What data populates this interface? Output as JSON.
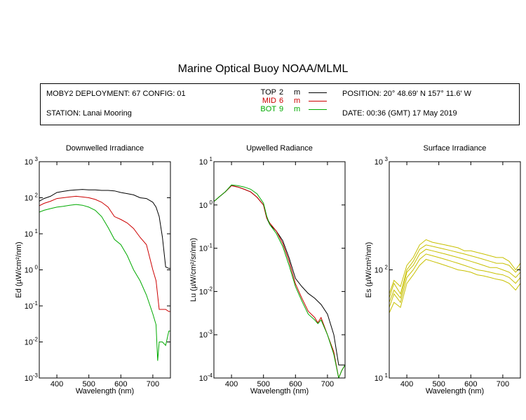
{
  "title": "Marine Optical Buoy NOAA/MLML",
  "info": {
    "deployment": "MOBY2 DEPLOYMENT: 67 CONFIG: 01",
    "station": "STATION: Lanai Mooring",
    "position": "POSITION: 20° 48.69' N   157° 11.6' W",
    "date": "DATE: 00:36 (GMT) 17 May 2019",
    "legend": [
      {
        "name": "TOP",
        "depth": "2",
        "unit": "m",
        "color": "#000000"
      },
      {
        "name": "MID",
        "depth": "6",
        "unit": "m",
        "color": "#cc0000"
      },
      {
        "name": "BOT",
        "depth": "9",
        "unit": "m",
        "color": "#00aa00"
      }
    ]
  },
  "chart_data": [
    {
      "type": "line",
      "title": "Downwelled Irradiance",
      "xlabel": "Wavelength (nm)",
      "ylabel": "Ed  (µW/cm²/nm)",
      "xlim": [
        345,
        755
      ],
      "ylim": [
        0.001,
        1000
      ],
      "yscale": "log",
      "xticks": [
        400,
        500,
        600,
        700
      ],
      "yticks": [
        0.001,
        0.01,
        0.1,
        1,
        10,
        100,
        1000
      ],
      "ytick_labels": [
        [
          "10",
          "-3"
        ],
        [
          "10",
          "-2"
        ],
        [
          "10",
          "-1"
        ],
        [
          "10",
          "0"
        ],
        [
          "10",
          "1"
        ],
        [
          "10",
          "2"
        ],
        [
          "10",
          "3"
        ]
      ],
      "series": [
        {
          "name": "TOP",
          "color": "#000000",
          "x": [
            345,
            360,
            380,
            400,
            420,
            440,
            460,
            480,
            500,
            520,
            540,
            560,
            580,
            600,
            620,
            640,
            660,
            680,
            700,
            710,
            720,
            730,
            740,
            750,
            755
          ],
          "y": [
            80,
            95,
            110,
            140,
            150,
            160,
            165,
            170,
            165,
            165,
            160,
            160,
            155,
            140,
            130,
            120,
            100,
            95,
            75,
            55,
            30,
            8,
            1.2,
            1.1,
            1.1
          ]
        },
        {
          "name": "MID",
          "color": "#cc0000",
          "x": [
            345,
            360,
            380,
            400,
            420,
            440,
            460,
            480,
            500,
            520,
            540,
            560,
            580,
            600,
            620,
            640,
            660,
            680,
            700,
            710,
            720,
            730,
            740,
            750,
            755
          ],
          "y": [
            60,
            70,
            80,
            95,
            100,
            105,
            110,
            105,
            100,
            90,
            75,
            55,
            30,
            25,
            20,
            14,
            8,
            5,
            1,
            0.5,
            0.08,
            0.08,
            0.08,
            0.07,
            0.07
          ]
        },
        {
          "name": "BOT",
          "color": "#00aa00",
          "x": [
            345,
            360,
            380,
            400,
            420,
            440,
            460,
            480,
            500,
            520,
            540,
            560,
            580,
            600,
            620,
            640,
            660,
            680,
            700,
            710,
            715,
            720,
            730,
            740,
            750,
            755
          ],
          "y": [
            40,
            45,
            50,
            55,
            58,
            62,
            65,
            62,
            55,
            45,
            30,
            15,
            7,
            5,
            2.5,
            1,
            0.5,
            0.2,
            0.06,
            0.03,
            0.003,
            0.01,
            0.01,
            0.008,
            0.02,
            0.02
          ]
        }
      ]
    },
    {
      "type": "line",
      "title": "Upwelled Radiance",
      "xlabel": "Wavelength (nm)",
      "ylabel": "Lu  (µW/cm²/sr/nm)",
      "xlim": [
        345,
        755
      ],
      "ylim": [
        0.0001,
        10
      ],
      "yscale": "log",
      "xticks": [
        400,
        500,
        600,
        700
      ],
      "yticks": [
        0.0001,
        0.001,
        0.01,
        0.1,
        1,
        10
      ],
      "ytick_labels": [
        [
          "10",
          "-4"
        ],
        [
          "10",
          "-3"
        ],
        [
          "10",
          "-2"
        ],
        [
          "10",
          "-1"
        ],
        [
          "10",
          "0"
        ],
        [
          "10",
          "1"
        ]
      ],
      "series": [
        {
          "name": "TOP",
          "color": "#000000",
          "x": [
            345,
            360,
            380,
            400,
            420,
            440,
            460,
            480,
            500,
            510,
            520,
            540,
            560,
            580,
            600,
            620,
            640,
            660,
            680,
            700,
            720,
            735,
            745,
            755
          ],
          "y": [
            1.2,
            1.5,
            2.0,
            2.8,
            2.6,
            2.3,
            2.0,
            1.5,
            1.0,
            0.5,
            0.35,
            0.25,
            0.15,
            0.06,
            0.02,
            0.013,
            0.009,
            0.007,
            0.005,
            0.003,
            0.001,
            0.0002,
            0.0002,
            0.0002
          ]
        },
        {
          "name": "MID",
          "color": "#cc0000",
          "x": [
            345,
            360,
            380,
            400,
            420,
            440,
            460,
            480,
            500,
            510,
            520,
            540,
            560,
            580,
            600,
            620,
            640,
            660,
            670,
            680,
            700,
            720,
            735,
            745,
            755
          ],
          "y": [
            1.2,
            1.5,
            2.0,
            2.8,
            2.6,
            2.3,
            2.0,
            1.5,
            1.0,
            0.5,
            0.38,
            0.25,
            0.13,
            0.05,
            0.015,
            0.007,
            0.0035,
            0.0025,
            0.0019,
            0.0025,
            0.001,
            0.0004,
            0.0001,
            0.00015,
            0.0002
          ]
        },
        {
          "name": "BOT",
          "color": "#00aa00",
          "x": [
            345,
            360,
            380,
            400,
            420,
            440,
            460,
            480,
            500,
            510,
            520,
            540,
            560,
            580,
            600,
            620,
            640,
            660,
            670,
            680,
            700,
            720,
            735,
            745,
            755
          ],
          "y": [
            1.2,
            1.5,
            2.0,
            2.9,
            2.8,
            2.6,
            2.3,
            1.8,
            1.1,
            0.55,
            0.35,
            0.22,
            0.11,
            0.04,
            0.013,
            0.006,
            0.003,
            0.0022,
            0.0018,
            0.0022,
            0.001,
            0.00035,
            0.0001,
            0.00015,
            0.0002
          ]
        }
      ]
    },
    {
      "type": "line",
      "title": "Surface Irradiance",
      "xlabel": "Wavelength (nm)",
      "ylabel": "Es  (µW/cm²/nm)",
      "xlim": [
        345,
        755
      ],
      "ylim": [
        10,
        1000
      ],
      "yscale": "log",
      "xticks": [
        400,
        500,
        600,
        700
      ],
      "yticks": [
        10,
        100,
        1000
      ],
      "ytick_labels": [
        [
          "10",
          "1"
        ],
        [
          "10",
          "2"
        ],
        [
          "10",
          "3"
        ]
      ],
      "series": [
        {
          "color": "#c8c000",
          "x": [
            345,
            360,
            380,
            400,
            420,
            440,
            460,
            480,
            500,
            520,
            540,
            560,
            580,
            600,
            620,
            640,
            660,
            680,
            700,
            720,
            740,
            755
          ],
          "y": [
            60,
            80,
            70,
            110,
            130,
            170,
            190,
            180,
            175,
            170,
            165,
            160,
            150,
            150,
            145,
            140,
            135,
            130,
            130,
            120,
            100,
            115
          ]
        },
        {
          "color": "#c8c000",
          "x": [
            345,
            360,
            380,
            400,
            420,
            440,
            460,
            480,
            500,
            520,
            540,
            560,
            580,
            600,
            620,
            640,
            660,
            680,
            700,
            720,
            740,
            755
          ],
          "y": [
            55,
            75,
            60,
            100,
            120,
            155,
            170,
            165,
            160,
            155,
            150,
            145,
            140,
            135,
            130,
            125,
            120,
            115,
            115,
            110,
            95,
            105
          ]
        },
        {
          "color": "#c8c000",
          "x": [
            345,
            360,
            380,
            400,
            420,
            440,
            460,
            480,
            500,
            520,
            540,
            560,
            580,
            600,
            620,
            640,
            660,
            680,
            700,
            720,
            740,
            755
          ],
          "y": [
            50,
            65,
            55,
            95,
            110,
            140,
            155,
            150,
            145,
            140,
            135,
            130,
            125,
            120,
            115,
            110,
            105,
            105,
            100,
            95,
            85,
            95
          ]
        },
        {
          "color": "#c8c000",
          "x": [
            345,
            360,
            380,
            400,
            420,
            440,
            460,
            480,
            500,
            520,
            540,
            560,
            580,
            600,
            620,
            640,
            660,
            680,
            700,
            720,
            740,
            755
          ],
          "y": [
            45,
            60,
            50,
            85,
            100,
            125,
            140,
            135,
            130,
            125,
            120,
            115,
            110,
            105,
            100,
            98,
            95,
            92,
            90,
            85,
            75,
            85
          ]
        },
        {
          "color": "#c8c000",
          "x": [
            345,
            360,
            380,
            400,
            420,
            440,
            460,
            480,
            500,
            520,
            540,
            560,
            580,
            600,
            620,
            640,
            660,
            680,
            700,
            720,
            740,
            755
          ],
          "y": [
            40,
            50,
            45,
            75,
            90,
            110,
            125,
            120,
            115,
            110,
            105,
            100,
            98,
            95,
            90,
            88,
            85,
            82,
            80,
            75,
            65,
            75
          ]
        }
      ]
    }
  ]
}
